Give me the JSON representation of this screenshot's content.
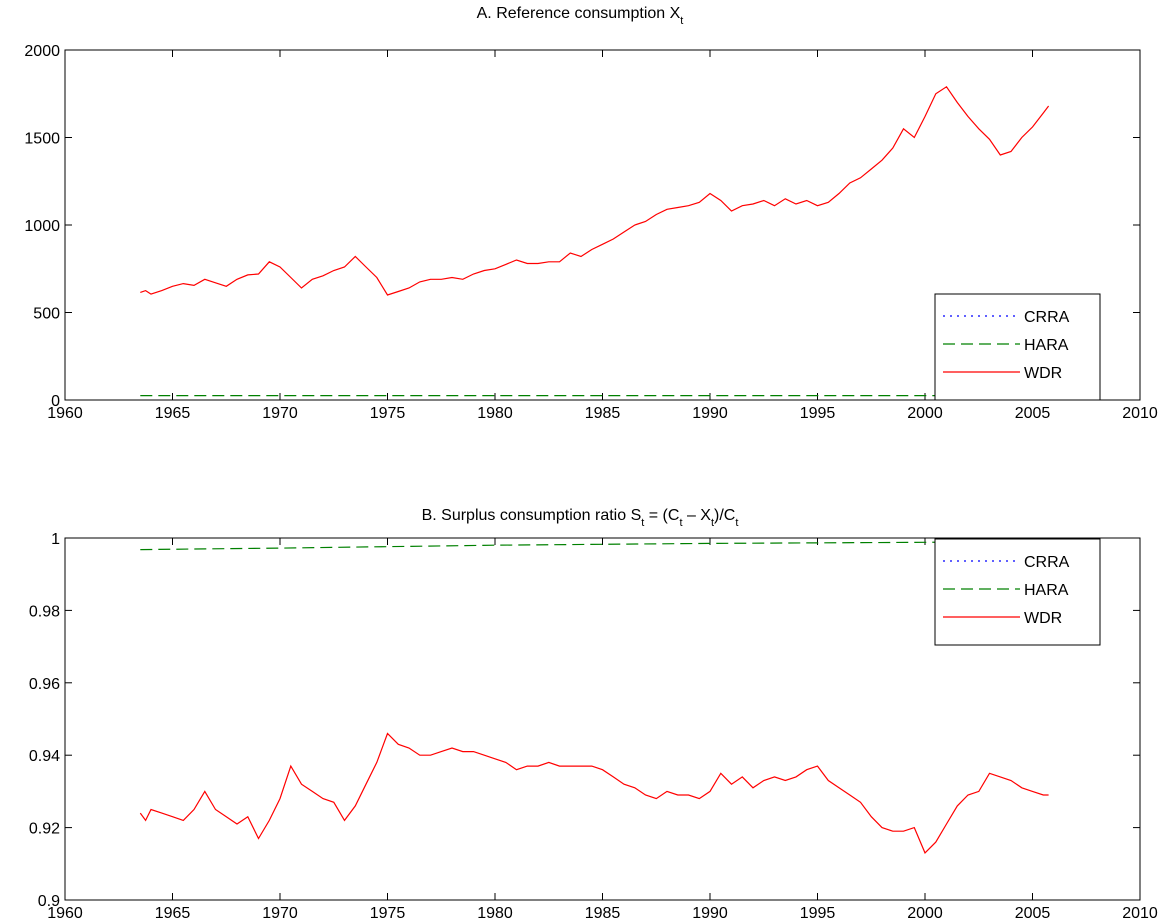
{
  "chart_data": [
    {
      "type": "line",
      "title": "A. Reference consumption X",
      "title_subscript": "t",
      "xlim": [
        1960,
        2010
      ],
      "ylim": [
        0,
        2000
      ],
      "xticks": [
        "1960",
        "1965",
        "1970",
        "1975",
        "1980",
        "1985",
        "1990",
        "1995",
        "2000",
        "2005",
        "2010"
      ],
      "yticks": [
        "0",
        "500",
        "1000",
        "1500",
        "2000"
      ],
      "legend_position": "bottom-right",
      "series": [
        {
          "name": "CRRA",
          "style": "dotted",
          "color": "#0000ff",
          "x": [],
          "y": []
        },
        {
          "name": "HARA",
          "style": "dashed",
          "color": "#008000",
          "x": [
            1963.5,
            2005.75
          ],
          "y": [
            25,
            25
          ]
        },
        {
          "name": "WDR",
          "style": "solid",
          "color": "#ff0000",
          "x": [
            1963.5,
            1963.75,
            1964,
            1964.5,
            1965,
            1965.5,
            1966,
            1966.5,
            1967,
            1967.5,
            1968,
            1968.5,
            1969,
            1969.5,
            1970,
            1970.5,
            1971,
            1971.5,
            1972,
            1972.5,
            1973,
            1973.5,
            1974,
            1974.5,
            1975,
            1975.5,
            1976,
            1976.5,
            1977,
            1977.5,
            1978,
            1978.5,
            1979,
            1979.5,
            1980,
            1980.5,
            1981,
            1981.5,
            1982,
            1982.5,
            1983,
            1983.5,
            1984,
            1984.5,
            1985,
            1985.5,
            1986,
            1986.5,
            1987,
            1987.5,
            1988,
            1988.5,
            1989,
            1989.5,
            1990,
            1990.5,
            1991,
            1991.5,
            1992,
            1992.5,
            1993,
            1993.5,
            1994,
            1994.5,
            1995,
            1995.5,
            1996,
            1996.5,
            1997,
            1997.5,
            1998,
            1998.5,
            1999,
            1999.5,
            2000,
            2000.5,
            2001,
            2001.5,
            2002,
            2002.5,
            2003,
            2003.5,
            2004,
            2004.5,
            2005,
            2005.5,
            2005.75
          ],
          "y": [
            615,
            625,
            605,
            625,
            650,
            665,
            655,
            690,
            670,
            650,
            690,
            715,
            720,
            790,
            760,
            700,
            640,
            690,
            710,
            740,
            760,
            820,
            760,
            700,
            600,
            620,
            640,
            675,
            690,
            690,
            700,
            690,
            720,
            740,
            750,
            775,
            800,
            780,
            780,
            790,
            790,
            840,
            820,
            860,
            890,
            920,
            960,
            1000,
            1020,
            1060,
            1090,
            1100,
            1110,
            1130,
            1180,
            1140,
            1080,
            1110,
            1120,
            1140,
            1110,
            1150,
            1120,
            1140,
            1110,
            1130,
            1180,
            1240,
            1270,
            1320,
            1370,
            1440,
            1550,
            1500,
            1620,
            1750,
            1790,
            1700,
            1620,
            1550,
            1490,
            1400,
            1420,
            1500,
            1560,
            1640,
            1680
          ]
        }
      ]
    },
    {
      "type": "line",
      "title": "B. Surplus consumption ratio S",
      "title_subscript": "t",
      "title_rest": "= (C",
      "title_sub2": "t",
      "title_rest2": "– X",
      "title_sub3": "t",
      "title_rest3": ")/C",
      "title_sub4": "t",
      "xlim": [
        1960,
        2010
      ],
      "ylim": [
        0.9,
        1.0
      ],
      "xticks": [
        "1960",
        "1965",
        "1970",
        "1975",
        "1980",
        "1985",
        "1990",
        "1995",
        "2000",
        "2005",
        "2010"
      ],
      "yticks": [
        "0.9",
        "0.92",
        "0.94",
        "0.96",
        "0.98",
        "1"
      ],
      "legend_position": "top-right",
      "series": [
        {
          "name": "CRRA",
          "style": "dotted",
          "color": "#0000ff",
          "x": [],
          "y": []
        },
        {
          "name": "HARA",
          "style": "dashed",
          "color": "#008000",
          "x": [
            1963.5,
            1970,
            1980,
            1990,
            2000,
            2005.75
          ],
          "y": [
            0.9968,
            0.9972,
            0.998,
            0.9985,
            0.9988,
            0.999
          ]
        },
        {
          "name": "WDR",
          "style": "solid",
          "color": "#ff0000",
          "x": [
            1963.5,
            1963.75,
            1964,
            1964.5,
            1965,
            1965.5,
            1966,
            1966.5,
            1967,
            1967.5,
            1968,
            1968.5,
            1969,
            1969.5,
            1970,
            1970.5,
            1971,
            1971.5,
            1972,
            1972.5,
            1973,
            1973.5,
            1974,
            1974.5,
            1975,
            1975.5,
            1976,
            1976.5,
            1977,
            1977.5,
            1978,
            1978.5,
            1979,
            1979.5,
            1980,
            1980.5,
            1981,
            1981.5,
            1982,
            1982.5,
            1983,
            1983.5,
            1984,
            1984.5,
            1985,
            1985.5,
            1986,
            1986.5,
            1987,
            1987.5,
            1988,
            1988.5,
            1989,
            1989.5,
            1990,
            1990.5,
            1991,
            1991.5,
            1992,
            1992.5,
            1993,
            1993.5,
            1994,
            1994.5,
            1995,
            1995.5,
            1996,
            1996.5,
            1997,
            1997.5,
            1998,
            1998.5,
            1999,
            1999.5,
            2000,
            2000.5,
            2001,
            2001.5,
            2002,
            2002.5,
            2003,
            2003.5,
            2004,
            2004.5,
            2005,
            2005.5,
            2005.75
          ],
          "y": [
            0.924,
            0.922,
            0.925,
            0.924,
            0.923,
            0.922,
            0.925,
            0.93,
            0.925,
            0.923,
            0.921,
            0.923,
            0.917,
            0.922,
            0.928,
            0.937,
            0.932,
            0.93,
            0.928,
            0.927,
            0.922,
            0.926,
            0.932,
            0.938,
            0.946,
            0.943,
            0.942,
            0.94,
            0.94,
            0.941,
            0.942,
            0.941,
            0.941,
            0.94,
            0.939,
            0.938,
            0.936,
            0.937,
            0.937,
            0.938,
            0.937,
            0.937,
            0.937,
            0.937,
            0.936,
            0.934,
            0.932,
            0.931,
            0.929,
            0.928,
            0.93,
            0.929,
            0.929,
            0.928,
            0.93,
            0.935,
            0.932,
            0.934,
            0.931,
            0.933,
            0.934,
            0.933,
            0.934,
            0.936,
            0.937,
            0.933,
            0.931,
            0.929,
            0.927,
            0.923,
            0.92,
            0.919,
            0.919,
            0.92,
            0.913,
            0.916,
            0.921,
            0.926,
            0.929,
            0.93,
            0.935,
            0.934,
            0.933,
            0.931,
            0.93,
            0.929,
            0.929
          ]
        }
      ]
    }
  ]
}
